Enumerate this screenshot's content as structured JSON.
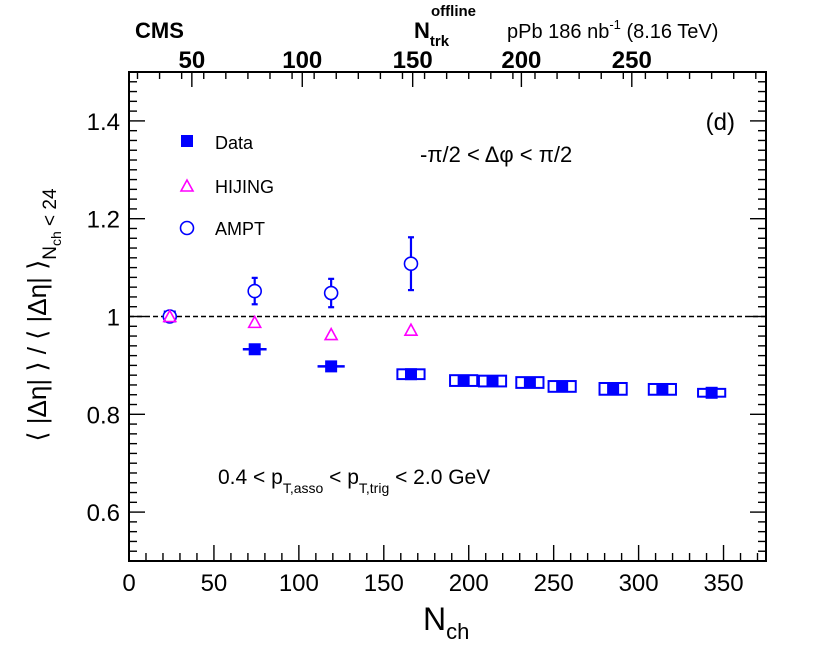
{
  "chart_data": {
    "type": "scatter",
    "header": {
      "experiment": "CMS",
      "top_axis_symbol": "N",
      "top_axis_sub": "trk",
      "top_axis_sup": "offline",
      "dataset_prefix": "pPb 186 nb",
      "dataset_sup": "-1",
      "dataset_suffix": " (8.16 TeV)"
    },
    "panel_label": "(d)",
    "annotations": {
      "delta_phi": "-π/2 < Δφ < π/2",
      "pt_a": "0.4 < p",
      "pt_sub1": "T,asso",
      "pt_b": " < p",
      "pt_sub2": "T,trig",
      "pt_c": " < 2.0 GeV"
    },
    "xlabel": {
      "main": "N",
      "sub": "ch"
    },
    "ylabel": {
      "main": "⟨ |Δη| ⟩ / ⟨ |Δη| ⟩",
      "sub": "N",
      "subsub": "ch",
      "tail": " < 24"
    },
    "xlim": [
      0,
      375
    ],
    "ylim": [
      0.5,
      1.5
    ],
    "x_ticks": [
      0,
      50,
      100,
      150,
      200,
      250,
      300,
      350
    ],
    "x_tick_labels": [
      "0",
      "50",
      "100",
      "150",
      "200",
      "250",
      "300",
      "350"
    ],
    "y_ticks": [
      0.6,
      0.8,
      1.0,
      1.2,
      1.4
    ],
    "y_tick_labels": [
      "0.6",
      "0.8",
      "1",
      "1.2",
      "1.4"
    ],
    "top_ticks": [
      {
        "x": 37,
        "label": "50"
      },
      {
        "x": 102,
        "label": "100"
      },
      {
        "x": 167,
        "label": "150"
      },
      {
        "x": 231,
        "label": "200"
      },
      {
        "x": 296,
        "label": "250"
      }
    ],
    "reference_line": 1.0,
    "legend": [
      {
        "name": "Data",
        "marker": "filled-square",
        "color": "#0000ff"
      },
      {
        "name": "HIJING",
        "marker": "open-triangle",
        "color": "#ff00ff"
      },
      {
        "name": "AMPT",
        "marker": "open-circle",
        "color": "#0000ff"
      }
    ],
    "series": [
      {
        "name": "Data",
        "points": [
          {
            "x": 24,
            "y": 1.0,
            "xerr": 3,
            "syst": 0.0
          },
          {
            "x": 74,
            "y": 0.933,
            "xerr": 7,
            "syst": 0.0
          },
          {
            "x": 119,
            "y": 0.898,
            "xerr": 8,
            "syst": 0.0
          },
          {
            "x": 166,
            "y": 0.882,
            "xerr": 8,
            "syst": 0.01
          },
          {
            "x": 197,
            "y": 0.869,
            "xerr": 8,
            "syst": 0.011
          },
          {
            "x": 214,
            "y": 0.868,
            "xerr": 8,
            "syst": 0.011
          },
          {
            "x": 236,
            "y": 0.865,
            "xerr": 8,
            "syst": 0.011
          },
          {
            "x": 255,
            "y": 0.857,
            "xerr": 8,
            "syst": 0.011
          },
          {
            "x": 285,
            "y": 0.852,
            "xerr": 8,
            "syst": 0.012
          },
          {
            "x": 314,
            "y": 0.851,
            "xerr": 8,
            "syst": 0.011
          },
          {
            "x": 343,
            "y": 0.844,
            "xerr": 8,
            "syst": 0.008
          }
        ]
      },
      {
        "name": "HIJING",
        "points": [
          {
            "x": 24,
            "y": 1.0
          },
          {
            "x": 74,
            "y": 0.988
          },
          {
            "x": 119,
            "y": 0.963
          },
          {
            "x": 166,
            "y": 0.972
          }
        ]
      },
      {
        "name": "AMPT",
        "points": [
          {
            "x": 24,
            "y": 1.0,
            "yerr": 0.0
          },
          {
            "x": 74,
            "y": 1.052,
            "yerr": 0.027
          },
          {
            "x": 119,
            "y": 1.048,
            "yerr": 0.029
          },
          {
            "x": 166,
            "y": 1.108,
            "yerr": 0.054
          }
        ]
      }
    ]
  }
}
